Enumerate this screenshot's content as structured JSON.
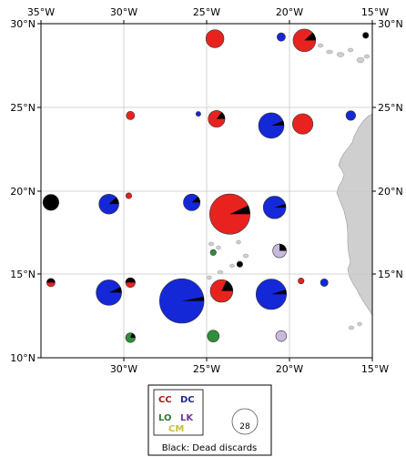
{
  "map": {
    "lon_ticks_top": [
      "35°W",
      "30°W",
      "25°W",
      "20°W",
      "15°W"
    ],
    "lon_ticks_bottom": [
      "30°W",
      "25°W",
      "20°W",
      "15°W"
    ],
    "lat_ticks_left": [
      "30°N",
      "25°N",
      "20°N",
      "15°N",
      "10°N"
    ],
    "lat_ticks_right": [
      "30°N",
      "25°N",
      "20°N",
      "15°N"
    ],
    "extent": {
      "lon": [
        -35,
        -15
      ],
      "lat": [
        10,
        30
      ]
    },
    "grid": true,
    "land_color": "#cfcfcf"
  },
  "colors": {
    "CC": "#e8231f",
    "DC": "#1428d8",
    "LO": "#2f8f3a",
    "LK": "#c8b8e0",
    "CM": "#d7d23a",
    "dead_discards": "#000000"
  },
  "legend": {
    "codes": [
      {
        "code": "CC",
        "color": "#b11a1a"
      },
      {
        "code": "DC",
        "color": "#1f2a8a"
      },
      {
        "code": "LO",
        "color": "#2f7a32"
      },
      {
        "code": "LK",
        "color": "#6a3a9a"
      },
      {
        "code": "CM",
        "color": "#c9c03a"
      }
    ],
    "size_reference": "28",
    "caption": "Black: Dead discards"
  },
  "pies": [
    {
      "lon": -24.5,
      "lat": 29.1,
      "total": 14,
      "color": "CC",
      "dead_fraction": 0.0
    },
    {
      "lon": -20.5,
      "lat": 29.2,
      "total": 3,
      "color": "DC",
      "dead_fraction": 0.0
    },
    {
      "lon": -19.1,
      "lat": 29.0,
      "total": 22,
      "color": "CC",
      "dead_fraction": 0.12
    },
    {
      "lon": -15.4,
      "lat": 29.3,
      "total": 1.5,
      "color": "dead_discards",
      "dead_fraction": 1.0
    },
    {
      "lon": -29.6,
      "lat": 24.5,
      "total": 3,
      "color": "CC",
      "dead_fraction": 0.0
    },
    {
      "lon": -25.5,
      "lat": 24.6,
      "total": 1,
      "color": "DC",
      "dead_fraction": 0.0
    },
    {
      "lon": -24.4,
      "lat": 24.3,
      "total": 12,
      "color": "CC",
      "dead_fraction": 0.15
    },
    {
      "lon": -21.1,
      "lat": 23.9,
      "total": 28,
      "color": "DC",
      "dead_fraction": 0.06
    },
    {
      "lon": -19.2,
      "lat": 24.0,
      "total": 18,
      "color": "CC",
      "dead_fraction": 0.0
    },
    {
      "lon": -16.3,
      "lat": 24.5,
      "total": 4,
      "color": "DC",
      "dead_fraction": 0.0
    },
    {
      "lon": -34.4,
      "lat": 19.3,
      "total": 11,
      "color": "dead_discards",
      "dead_fraction": 1.0
    },
    {
      "lon": -30.9,
      "lat": 19.2,
      "total": 17,
      "color": "DC",
      "dead_fraction": 0.12
    },
    {
      "lon": -29.7,
      "lat": 19.7,
      "total": 1.5,
      "color": "CC",
      "dead_fraction": 0.0
    },
    {
      "lon": -25.9,
      "lat": 19.3,
      "total": 12,
      "color": "DC",
      "dead_fraction": 0.12
    },
    {
      "lon": -23.6,
      "lat": 18.6,
      "total": 70,
      "color": "CC",
      "dead_fraction": 0.07
    },
    {
      "lon": -20.9,
      "lat": 19.0,
      "total": 22,
      "color": "DC",
      "dead_fraction": 0.05
    },
    {
      "lon": -24.6,
      "lat": 16.3,
      "total": 1.5,
      "color": "LO",
      "dead_fraction": 0.0
    },
    {
      "lon": -23.0,
      "lat": 15.6,
      "total": 1.5,
      "color": "dead_discards",
      "dead_fraction": 1.0
    },
    {
      "lon": -20.6,
      "lat": 16.4,
      "total": 8,
      "color": "LK",
      "dead_fraction": 0.25
    },
    {
      "lon": -34.4,
      "lat": 14.5,
      "total": 3,
      "color": "CC",
      "dead_fraction": 0.5
    },
    {
      "lon": -30.9,
      "lat": 13.9,
      "total": 28,
      "color": "DC",
      "dead_fraction": 0.07
    },
    {
      "lon": -29.6,
      "lat": 14.5,
      "total": 4,
      "color": "CC",
      "dead_fraction": 0.5
    },
    {
      "lon": -26.5,
      "lat": 13.4,
      "total": 85,
      "color": "DC",
      "dead_fraction": 0.03
    },
    {
      "lon": -24.1,
      "lat": 14.0,
      "total": 22,
      "color": "CC",
      "dead_fraction": 0.18
    },
    {
      "lon": -21.1,
      "lat": 13.8,
      "total": 40,
      "color": "DC",
      "dead_fraction": 0.05
    },
    {
      "lon": -19.3,
      "lat": 14.6,
      "total": 1.5,
      "color": "CC",
      "dead_fraction": 0.0
    },
    {
      "lon": -17.9,
      "lat": 14.5,
      "total": 2.5,
      "color": "DC",
      "dead_fraction": 0.0
    },
    {
      "lon": -29.6,
      "lat": 11.2,
      "total": 4,
      "color": "LO",
      "dead_fraction": 0.2
    },
    {
      "lon": -24.6,
      "lat": 11.3,
      "total": 6,
      "color": "LO",
      "dead_fraction": 0.0
    },
    {
      "lon": -20.5,
      "lat": 11.3,
      "total": 5,
      "color": "LK",
      "dead_fraction": 0.0
    }
  ]
}
